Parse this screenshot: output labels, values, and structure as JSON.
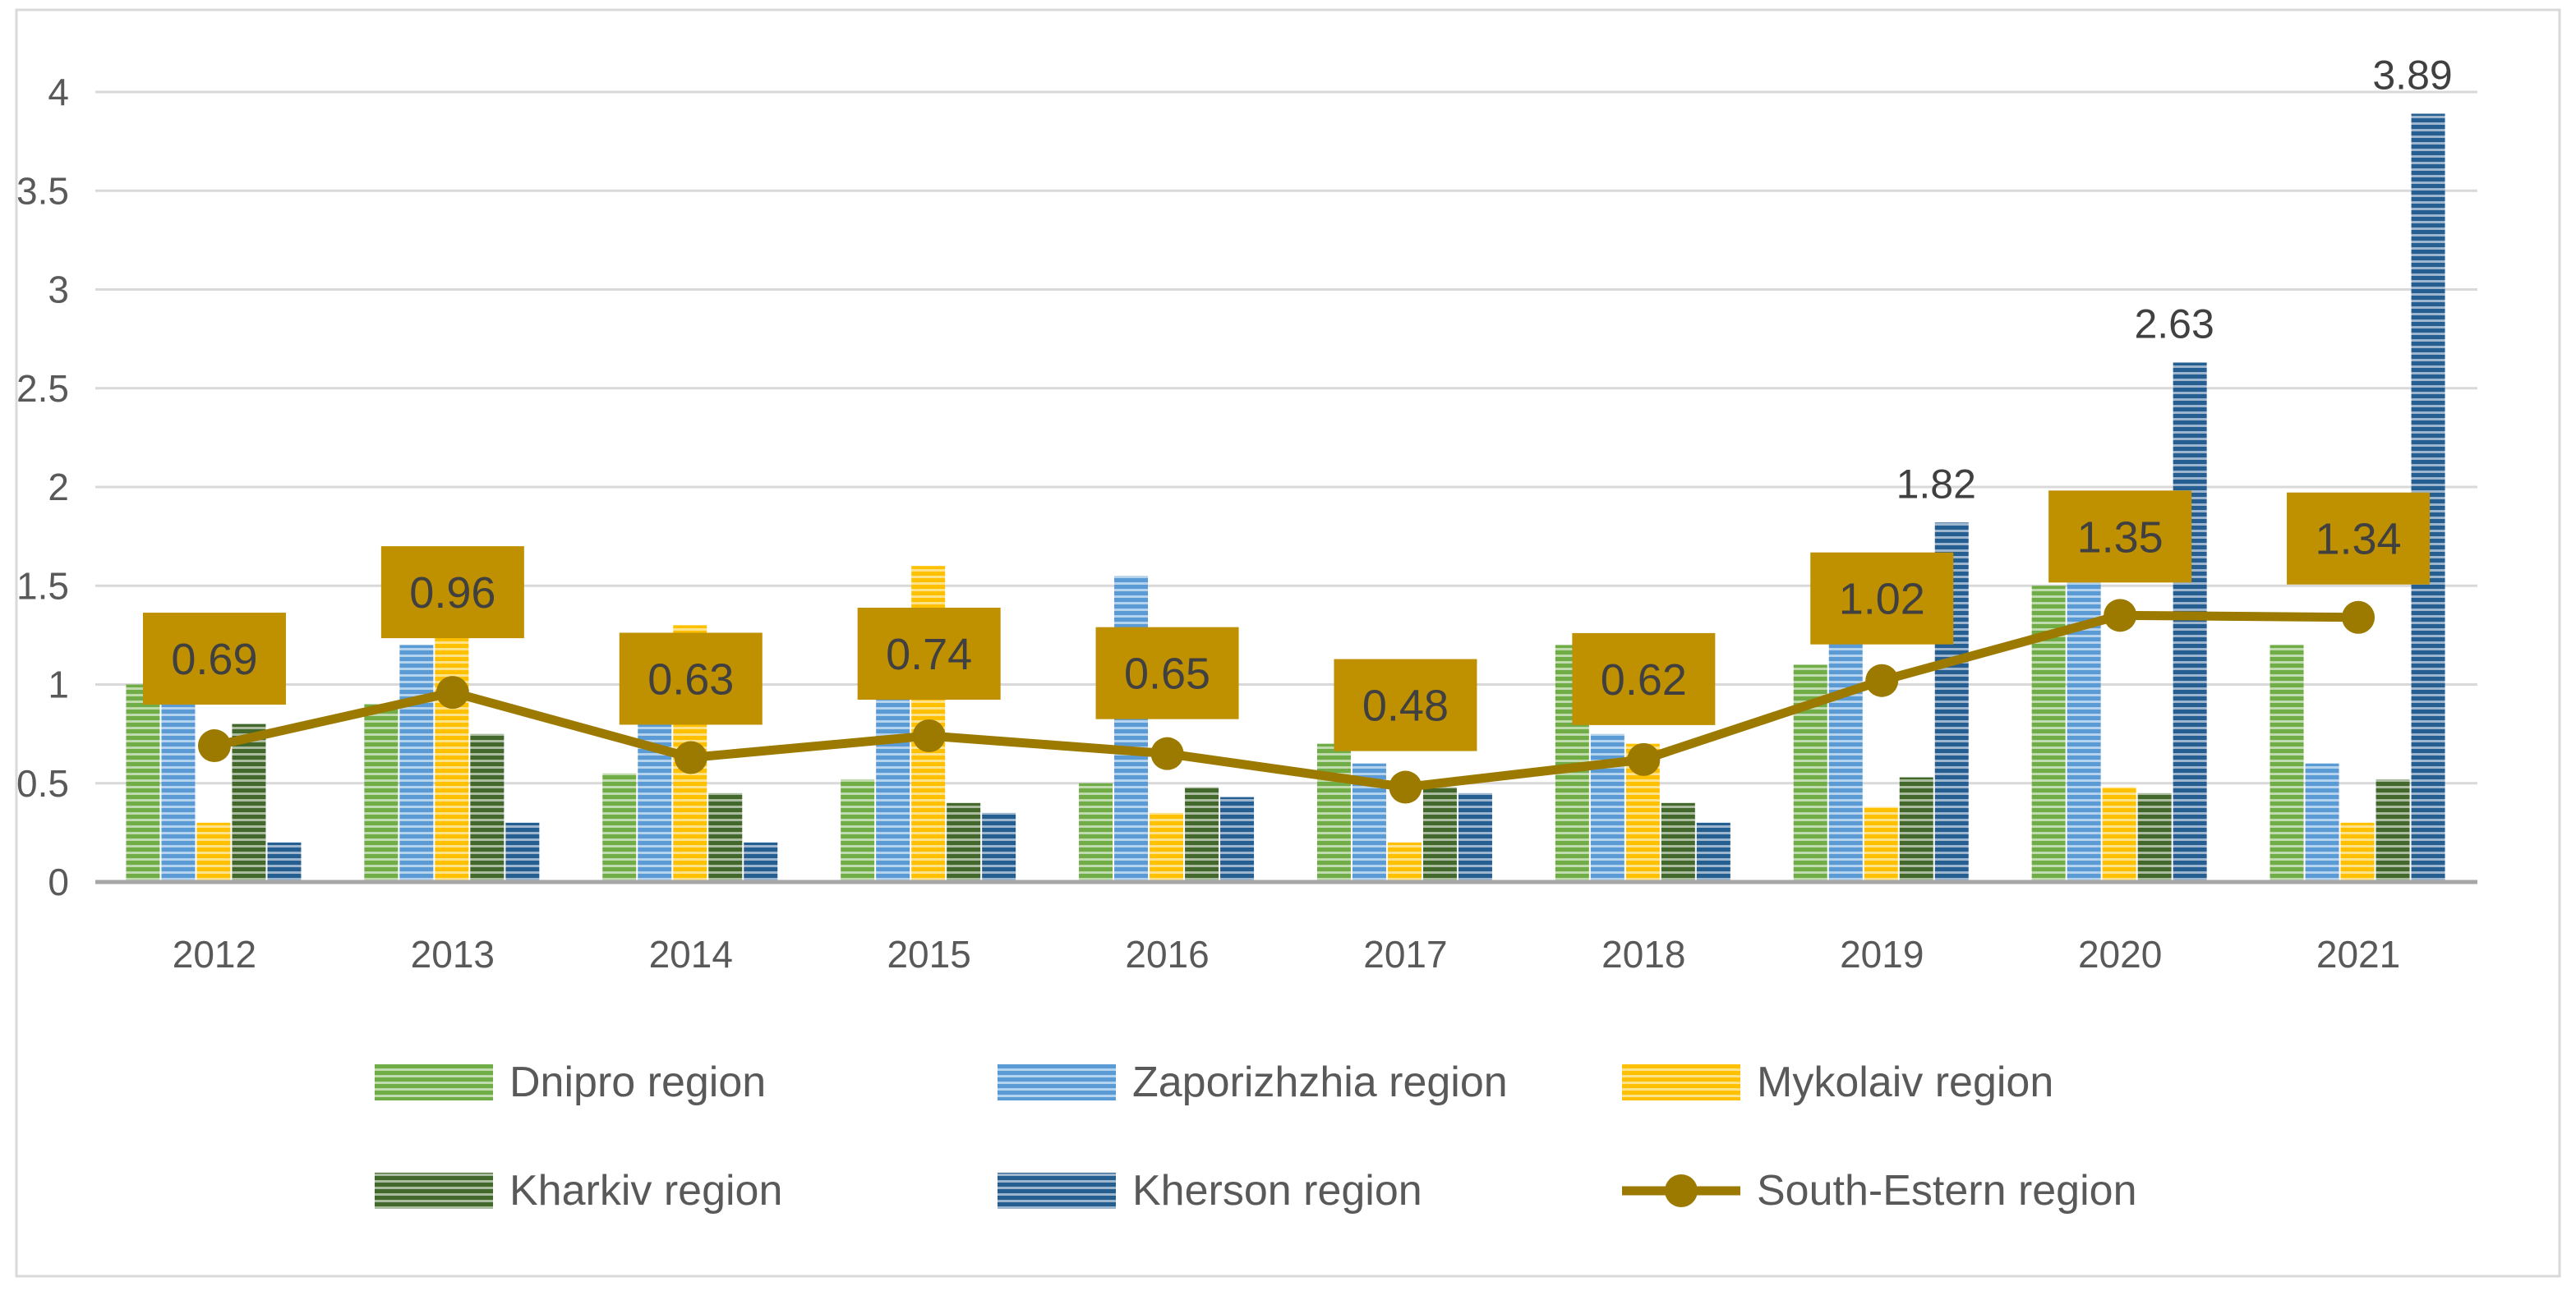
{
  "colors": {
    "dnipro": "#70ad47",
    "zaporizhzhia": "#5b9bd5",
    "mykolaiv": "#ffc000",
    "kharkiv": "#43682b",
    "kherson": "#255e91",
    "south_estern": "#9c7a00",
    "label_box": "#bf9000"
  },
  "chart_data": {
    "type": "bar",
    "title": "",
    "xlabel": "",
    "ylabel": "",
    "ylim": [
      0,
      4
    ],
    "yticks": [
      "0",
      "0.5",
      "1",
      "1.5",
      "2",
      "2.5",
      "3",
      "3.5",
      "4"
    ],
    "gridlines": true,
    "legend_position": "bottom",
    "categories": [
      "2012",
      "2013",
      "2014",
      "2015",
      "2016",
      "2017",
      "2018",
      "2019",
      "2020",
      "2021"
    ],
    "series": [
      {
        "name": "Dnipro region",
        "key": "dnipro",
        "type": "bar",
        "values": [
          1.0,
          0.9,
          0.55,
          0.52,
          0.5,
          0.7,
          1.2,
          1.1,
          1.5,
          1.2
        ]
      },
      {
        "name": "Zaporizhzhia region",
        "key": "zaporizhzhia",
        "type": "bar",
        "values": [
          0.9,
          1.2,
          0.8,
          1.0,
          1.55,
          0.6,
          0.75,
          1.25,
          1.6,
          0.6
        ]
      },
      {
        "name": "Mykolaiv region",
        "key": "mykolaiv",
        "type": "bar",
        "values": [
          0.3,
          1.3,
          1.3,
          1.6,
          0.35,
          0.2,
          0.7,
          0.38,
          0.48,
          0.3
        ]
      },
      {
        "name": "Kharkiv region",
        "key": "kharkiv",
        "type": "bar",
        "values": [
          0.8,
          0.75,
          0.45,
          0.4,
          0.48,
          0.48,
          0.4,
          0.53,
          0.45,
          0.52
        ]
      },
      {
        "name": "Kherson region",
        "key": "kherson",
        "type": "bar",
        "values": [
          0.2,
          0.3,
          0.2,
          0.35,
          0.43,
          0.45,
          0.3,
          1.82,
          2.63,
          3.89
        ],
        "data_labels": [
          "",
          "",
          "",
          "",
          "",
          "",
          "",
          "1.82",
          "2.63",
          "3.89"
        ]
      },
      {
        "name": "South-Estern region",
        "key": "south_estern",
        "type": "line",
        "values": [
          0.69,
          0.96,
          0.63,
          0.74,
          0.65,
          0.48,
          0.62,
          1.02,
          1.35,
          1.34
        ],
        "data_labels": [
          "0.69",
          "0.96",
          "0.63",
          "0.74",
          "0.65",
          "0.48",
          "0.62",
          "1.02",
          "1.35",
          "1.34"
        ]
      }
    ]
  }
}
